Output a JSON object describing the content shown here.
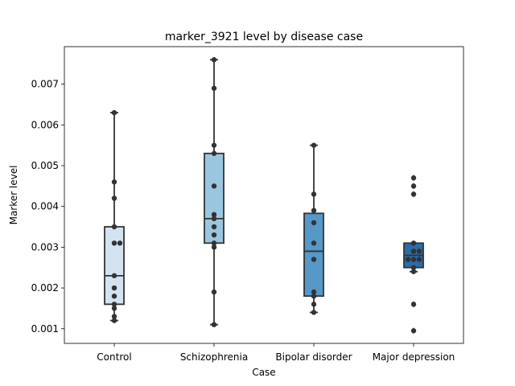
{
  "chart_data": {
    "type": "box",
    "title": "marker_3921 level by disease case",
    "xlabel": "Case",
    "ylabel": "Marker level",
    "ylim": [
      0.00064,
      0.00792
    ],
    "yticks": [
      "0.001",
      "0.002",
      "0.003",
      "0.004",
      "0.005",
      "0.006",
      "0.007"
    ],
    "grid": false,
    "categories": [
      "Control",
      "Schizophrenia",
      "Bipolar disorder",
      "Major depression"
    ],
    "colors": [
      "#d3e3f2",
      "#9bc6df",
      "#5698c7",
      "#2c6ba8"
    ],
    "boxes": [
      {
        "q1": 0.0016,
        "median": 0.0023,
        "q3": 0.0035,
        "whisker_low": 0.0012,
        "whisker_high": 0.0063,
        "outliers": []
      },
      {
        "q1": 0.0031,
        "median": 0.0037,
        "q3": 0.0053,
        "whisker_low": 0.0011,
        "whisker_high": 0.0076,
        "outliers": []
      },
      {
        "q1": 0.0018,
        "median": 0.0029,
        "q3": 0.00383,
        "whisker_low": 0.0014,
        "whisker_high": 0.0055,
        "outliers": []
      },
      {
        "q1": 0.0025,
        "median": 0.0028,
        "q3": 0.0031,
        "whisker_low": 0.0024,
        "whisker_high": 0.0031,
        "outliers": [
          0.0047,
          0.0045,
          0.0043,
          0.0016,
          0.00095
        ]
      }
    ],
    "points": [
      [
        0.0063,
        0.0046,
        0.0042,
        0.0035,
        0.0031,
        0.0031,
        0.0023,
        0.002,
        0.0018,
        0.0016,
        0.0015,
        0.0013,
        0.0012
      ],
      [
        0.0076,
        0.0069,
        0.0055,
        0.0053,
        0.0045,
        0.0038,
        0.0037,
        0.0035,
        0.0033,
        0.0031,
        0.003,
        0.0019,
        0.0011
      ],
      [
        0.0055,
        0.0043,
        0.0039,
        0.0036,
        0.0031,
        0.0027,
        0.0019,
        0.0018,
        0.0016,
        0.0014
      ],
      [
        0.0047,
        0.0045,
        0.0043,
        0.0031,
        0.0029,
        0.0029,
        0.0027,
        0.0027,
        0.0027,
        0.0025,
        0.0024,
        0.0016,
        0.00095
      ]
    ]
  }
}
